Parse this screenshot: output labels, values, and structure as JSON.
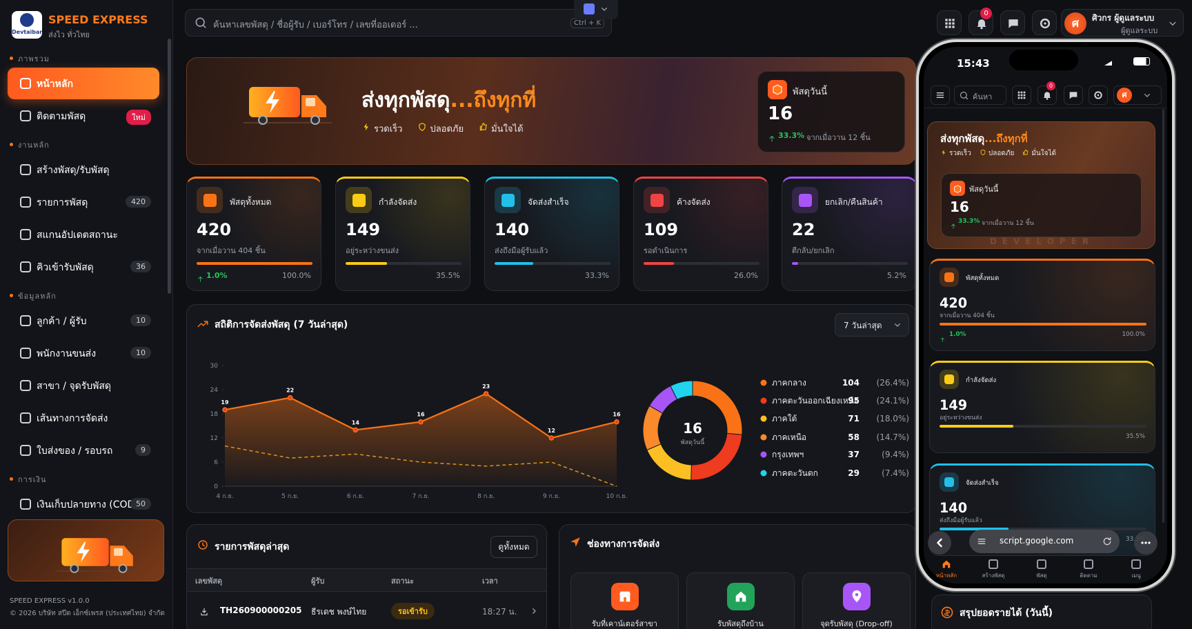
{
  "sidebar": {
    "brand": "SPEED EXPRESS",
    "tagline": "ส่งไว ทั่วไทย",
    "logo_text": "Devtaiban",
    "sections": [
      {
        "title": "ภาพรวม",
        "items": [
          {
            "label": "หน้าหลัก"
          },
          {
            "label": "ติดตามพัสดุ",
            "badge": "ใหม่"
          }
        ]
      },
      {
        "title": "งานหลัก",
        "items": [
          {
            "label": "สร้างพัสดุ/รับพัสดุ"
          },
          {
            "label": "รายการพัสดุ",
            "badge": 420
          },
          {
            "label": "สแกนอัปเดตสถานะ"
          },
          {
            "label": "คิวเข้ารับพัสดุ",
            "badge": 36
          }
        ]
      },
      {
        "title": "ข้อมูลหลัก",
        "items": [
          {
            "label": "ลูกค้า / ผู้รับ",
            "badge": 10
          },
          {
            "label": "พนักงานขนส่ง",
            "badge": 10
          },
          {
            "label": "สาขา / จุดรับพัสดุ"
          },
          {
            "label": "เส้นทางการจัดส่ง"
          },
          {
            "label": "ใบส่งของ / รอบรถ",
            "badge": 9
          }
        ]
      },
      {
        "title": "การเงิน",
        "items": [
          {
            "label": "เงินเก็บปลายทาง (COD)",
            "badge": 50
          }
        ]
      }
    ],
    "version": "SPEED EXPRESS v1.0.0",
    "copyright": "© 2026 บริษัท สปีด เอ็กซ์เพรส (ประเทศไทย) จำกัด"
  },
  "topbar": {
    "search_placeholder": "ค้นหาเลขพัสดุ / ชื่อผู้รับ / เบอร์โทร / เลขที่ออเดอร์ ...",
    "shortcut": "Ctrl + K",
    "notification_count": 0,
    "user_name": "ศิวกร ผู้ดูแลระบบ",
    "user_role": "ผู้ดูแลระบบ",
    "avatar": "ศ"
  },
  "hero": {
    "title": "ส่งทุกพัสดุ",
    "title_highlight": "...ถึงทุกที่",
    "features": [
      "รวดเร็ว",
      "ปลอดภัย",
      "มั่นใจได้"
    ],
    "today_label": "พัสดุวันนี้",
    "today_value": 16,
    "change": "33.3%",
    "change_note": "จากเมื่อวาน 12 ชิ้น"
  },
  "stats": [
    {
      "label": "พัสดุทั้งหมด",
      "value": 420,
      "note": "จากเมื่อวาน 404 ชิ้น",
      "change": "1.0%",
      "percent": 100,
      "percent_label": "100.0%",
      "color": "#f97316"
    },
    {
      "label": "กำลังจัดส่ง",
      "value": 149,
      "note": "อยู่ระหว่างขนส่ง",
      "percent": 35.5,
      "percent_label": "35.5%",
      "color": "#facc15"
    },
    {
      "label": "จัดส่งสำเร็จ",
      "value": 140,
      "note": "ส่งถึงมือผู้รับแล้ว",
      "percent": 33.3,
      "percent_label": "33.3%",
      "color": "#22c0e8"
    },
    {
      "label": "ค้างจัดส่ง",
      "value": 109,
      "note": "รอดำเนินการ",
      "percent": 26.0,
      "percent_label": "26.0%",
      "color": "#ef4444"
    },
    {
      "label": "ยกเลิก/คืนสินค้า",
      "value": 22,
      "note": "ตีกลับ/ยกเลิก",
      "percent": 5.2,
      "percent_label": "5.2%",
      "color": "#a855f7"
    }
  ],
  "shipping_chart": {
    "type": "line",
    "title": "สถิติการจัดส่งพัสดุ (7 วันล่าสุด)",
    "range": "7 วันล่าสุด",
    "categories": [
      "4 ก.ย.",
      "5 ก.ย.",
      "6 ก.ย.",
      "7 ก.ย.",
      "8 ก.ย.",
      "9 ก.ย.",
      "10 ก.ย."
    ],
    "ylim": [
      0,
      30
    ],
    "yticks": [
      0,
      6,
      12,
      18,
      24,
      30
    ],
    "series": [
      {
        "color": "#f97316",
        "values": [
          19,
          22,
          14,
          16,
          23,
          12,
          16
        ],
        "data_labels": true,
        "fill": true
      },
      {
        "color": "#d9951f",
        "values": [
          10,
          7,
          8,
          6,
          5,
          6,
          0
        ],
        "dashed": true
      }
    ]
  },
  "regions": {
    "type": "donut",
    "center_value": 16,
    "center_label": "พัสดุวันนี้",
    "segments": [
      {
        "name": "ภาคกลาง",
        "value": 104,
        "share_label": "(26.4%)",
        "color": "#f97316"
      },
      {
        "name": "ภาคตะวันออกเฉียงเหนือ",
        "value": 95,
        "share_label": "(24.1%)",
        "color": "#ef3b1f"
      },
      {
        "name": "ภาคใต้",
        "value": 71,
        "share_label": "(18.0%)",
        "color": "#fbbf24"
      },
      {
        "name": "ภาคเหนือ",
        "value": 58,
        "share_label": "(14.7%)",
        "color": "#fb8a2c"
      },
      {
        "name": "กรุงเทพฯ",
        "value": 37,
        "share_label": "(9.4%)",
        "color": "#a855f7"
      },
      {
        "name": "ภาคตะวันตก",
        "value": 29,
        "share_label": "(7.4%)",
        "color": "#22d3ee"
      }
    ]
  },
  "recent": {
    "title": "รายการพัสดุล่าสุด",
    "button": "ดูทั้งหมด",
    "headers": [
      "เลขพัสดุ",
      "ผู้รับ",
      "สถานะ",
      "เวลา"
    ],
    "rows": [
      [
        "TH260900000205",
        "ธีรเดช พงษ์ไทย",
        "รอเข้ารับ",
        "18:27 น."
      ]
    ]
  },
  "channels": {
    "title": "ช่องทางการจัดส่ง",
    "items": [
      "รับที่เคาน์เตอร์สาขา",
      "รับพัสดุถึงบ้าน",
      "จุดรับพัสดุ (Drop-off)"
    ]
  },
  "phone": {
    "time": "15:43",
    "search": "ค้นหา",
    "watermark": "DEVELOPER",
    "url": "script.google.com",
    "nav": [
      "หน้าหลัก",
      "สร้างพัสดุ",
      "พัสดุ",
      "ติดตาม",
      "เมนู"
    ]
  },
  "revenue": {
    "title": "สรุปยอดรายได้ (วันนี้)"
  }
}
